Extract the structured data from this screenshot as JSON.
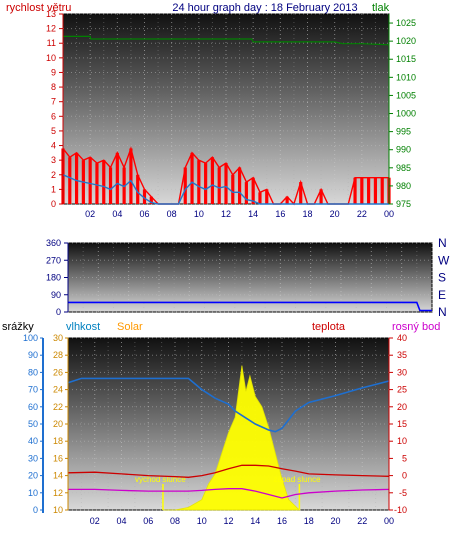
{
  "header": {
    "title": "24 hour graph day : 18 February 2013",
    "left_label": "rychlost větru",
    "right_label": "tlak"
  },
  "colors": {
    "wind": "#ff0000",
    "gust": "#ff0000",
    "pressure": "#008000",
    "direction": "#0000ff",
    "humidity": "#1e6fd0",
    "temperature": "#cc0000",
    "dewpoint": "#cc00cc",
    "solar": "#ffff00",
    "left_axis": "#cc0000",
    "right_axis": "#008000",
    "dir_axis": "#000080",
    "bottom_left_axis": "#1e6fd0",
    "bottom_right_axis": "#cc0000",
    "label_solar": "#ff9900",
    "label_humidity": "#0080c0",
    "label_dew": "#cc00cc",
    "label_rain": "#000000"
  },
  "chart_data": [
    {
      "type": "line",
      "title": "24 hour graph day : 18 February 2013",
      "xlabel": "",
      "x_ticks": [
        "02",
        "04",
        "06",
        "08",
        "10",
        "12",
        "14",
        "16",
        "18",
        "20",
        "22",
        "00"
      ],
      "left_axis": {
        "label": "rychlost větru",
        "range": [
          0,
          13
        ],
        "ticks": [
          0,
          1,
          2,
          3,
          4,
          5,
          6,
          7,
          8,
          9,
          10,
          11,
          12,
          13
        ]
      },
      "right_axis": {
        "label": "tlak",
        "range": [
          975,
          1027.5
        ],
        "ticks": [
          975,
          980,
          985,
          990,
          995,
          1000,
          1005,
          1010,
          1015,
          1020,
          1025
        ]
      },
      "grid": true,
      "series": [
        {
          "name": "tlak",
          "x": [
            0,
            2,
            2.05,
            4,
            6,
            8,
            10,
            12,
            13.9,
            14,
            16,
            18,
            20,
            20.6,
            22,
            24
          ],
          "values": [
            1021.3,
            1021.3,
            1020.6,
            1020.6,
            1020.6,
            1020.6,
            1020.6,
            1020.6,
            1020.6,
            1019.8,
            1019.8,
            1019.8,
            1019.8,
            1019.3,
            1019.3,
            1019.0
          ]
        },
        {
          "name": "gust",
          "x": [
            0,
            0.5,
            1,
            1.5,
            2,
            2.5,
            3,
            3.5,
            4,
            4.5,
            5,
            5.5,
            6,
            6.5,
            7,
            7.5,
            8,
            8.5,
            9,
            9.5,
            10,
            10.5,
            11,
            11.5,
            12,
            12.5,
            13,
            13.5,
            14,
            14.5,
            15,
            15.5,
            16,
            16.5,
            17,
            17.5,
            18,
            18.5,
            19,
            19.5,
            20,
            20.5,
            21,
            21.5,
            22,
            22.5,
            23,
            23.5,
            24
          ],
          "values": [
            3.8,
            3.2,
            3.5,
            3.0,
            3.2,
            2.8,
            3.0,
            2.5,
            3.5,
            2.5,
            3.8,
            2.0,
            1.0,
            0.5,
            0,
            0,
            0,
            0,
            2.5,
            3.5,
            3.0,
            2.8,
            3.2,
            2.5,
            2.8,
            2.0,
            2.5,
            1.5,
            1.8,
            0.8,
            1.0,
            0,
            0,
            0.5,
            0,
            1.5,
            0,
            0,
            1.0,
            0,
            0,
            0,
            0,
            1.8,
            1.8,
            1.8,
            1.8,
            1.8,
            1.8
          ]
        },
        {
          "name": "wind",
          "x": [
            0,
            0.5,
            1,
            1.5,
            2,
            2.5,
            3,
            3.5,
            4,
            4.5,
            5,
            5.5,
            6,
            6.5,
            7,
            7.5,
            8,
            8.5,
            9,
            9.5,
            10,
            10.5,
            11,
            11.5,
            12,
            12.5,
            13,
            13.5,
            14,
            14.5,
            15,
            15.5,
            16,
            16.5,
            17,
            17.5,
            18,
            18.5,
            19,
            19.5,
            20,
            20.5,
            21,
            21.5,
            22,
            22.5,
            23,
            23.5,
            24
          ],
          "values": [
            2.0,
            1.8,
            1.6,
            1.5,
            1.4,
            1.3,
            1.2,
            1.0,
            1.4,
            1.2,
            1.6,
            0.8,
            0.4,
            0.1,
            0,
            0,
            0,
            0,
            1.0,
            1.5,
            1.2,
            1.0,
            1.3,
            1.1,
            1.2,
            0.8,
            0.8,
            0.3,
            0.2,
            0,
            0,
            0,
            0,
            0,
            0,
            0,
            0,
            0,
            0,
            0,
            0,
            0,
            0,
            0,
            0,
            0,
            0,
            0,
            0
          ]
        }
      ]
    },
    {
      "type": "line",
      "title": "",
      "left_axis": {
        "range": [
          0,
          360
        ],
        "ticks": [
          0,
          90,
          180,
          270,
          360
        ]
      },
      "right_labels": [
        "N",
        "W",
        "S",
        "E",
        "N"
      ],
      "grid": true,
      "series": [
        {
          "name": "",
          "x": [
            0,
            23,
            23.2,
            24
          ],
          "values": [
            50,
            50,
            8,
            8
          ]
        }
      ]
    },
    {
      "type": "area",
      "title": "",
      "x_ticks": [
        "02",
        "04",
        "06",
        "08",
        "10",
        "12",
        "14",
        "16",
        "18",
        "20",
        "22",
        "00"
      ],
      "labels": {
        "rain": "srážky",
        "humidity": "vlhkost",
        "solar": "Solar",
        "temperature": "teplota",
        "dewpoint": "rosný bod"
      },
      "axis_rain": {
        "range": [
          0,
          100
        ],
        "ticks": [
          0,
          10,
          20,
          30,
          40,
          50,
          60,
          70,
          80,
          90,
          100
        ]
      },
      "axis_humidity": {
        "range": [
          10,
          30
        ],
        "ticks": [
          10,
          12,
          14,
          16,
          18,
          20,
          22,
          24,
          26,
          28,
          30
        ]
      },
      "axis_temperature": {
        "range": [
          -10,
          40
        ],
        "ticks": [
          -10,
          -5,
          0,
          5,
          10,
          15,
          20,
          25,
          30,
          35,
          40
        ]
      },
      "annotations": [
        "východ slunce",
        "západ slunce"
      ],
      "sunrise_hour": 7.1,
      "sunset_hour": 17.3,
      "grid": true,
      "series": [
        {
          "name": "vlhkost",
          "x": [
            0,
            1,
            2,
            4,
            6,
            8,
            9,
            10,
            11,
            12,
            12.5,
            13,
            14,
            15,
            15.5,
            16,
            17,
            18,
            20,
            22,
            24
          ],
          "values": [
            24.8,
            25.3,
            25.3,
            25.3,
            25.3,
            25.3,
            25.3,
            24.0,
            23.0,
            22.3,
            21.5,
            21.0,
            20.0,
            19.3,
            19.1,
            19.5,
            21.5,
            22.5,
            23.3,
            24.2,
            25.0
          ]
        },
        {
          "name": "teplota",
          "x": [
            0,
            2,
            4,
            6,
            8,
            9,
            10,
            11,
            12,
            13,
            14,
            15,
            16,
            17,
            18,
            20,
            22,
            24
          ],
          "values": [
            0.8,
            1.0,
            0.5,
            0,
            -0.3,
            -0.5,
            0,
            0.8,
            2.0,
            3.0,
            3.0,
            2.8,
            2.0,
            1.3,
            0.5,
            0.2,
            0,
            -0.2
          ]
        },
        {
          "name": "rosný bod",
          "x": [
            0,
            2,
            4,
            6,
            8,
            9,
            10,
            11,
            12,
            13,
            14,
            15,
            16,
            17,
            18,
            20,
            22,
            24
          ],
          "values": [
            -4.0,
            -4.0,
            -4.3,
            -4.5,
            -4.5,
            -4.5,
            -4.3,
            -4.0,
            -3.8,
            -3.8,
            -4.5,
            -5.5,
            -6.5,
            -5.5,
            -5.0,
            -4.5,
            -4.2,
            -4.0
          ]
        },
        {
          "name": "Solar",
          "x": [
            7.1,
            8,
            9,
            10,
            10.5,
            11,
            11.5,
            12,
            12.5,
            13,
            13.3,
            13.6,
            14,
            14.5,
            15,
            15.5,
            16,
            16.5,
            17.3
          ],
          "values": [
            0,
            0,
            0.5,
            2,
            5,
            7,
            11,
            15,
            18,
            28,
            23,
            26,
            22,
            20,
            16,
            11,
            6,
            2,
            0
          ]
        }
      ]
    }
  ]
}
